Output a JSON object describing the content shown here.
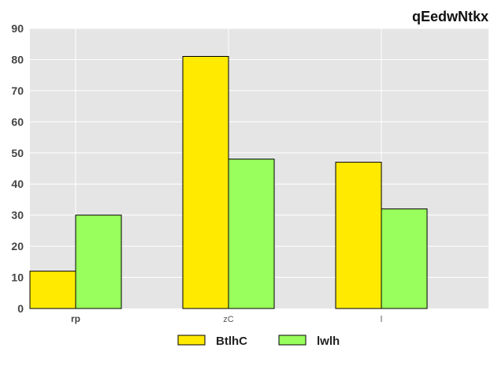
{
  "chart_data": {
    "type": "bar",
    "title": "qEedwNtkx",
    "categories": [
      "rp",
      "zC",
      "l"
    ],
    "series": [
      {
        "name": "BtlhC",
        "color": "#ffea00",
        "values": [
          12,
          81,
          47
        ]
      },
      {
        "name": "lwlh",
        "color": "#99ff5c",
        "values": [
          30,
          48,
          32
        ]
      }
    ],
    "ylim": [
      0,
      90
    ],
    "yticks": [
      0,
      10,
      20,
      30,
      40,
      50,
      60,
      70,
      80,
      90
    ],
    "grid": true,
    "legend_position": "bottom-center",
    "background": "#e5e5e5"
  }
}
